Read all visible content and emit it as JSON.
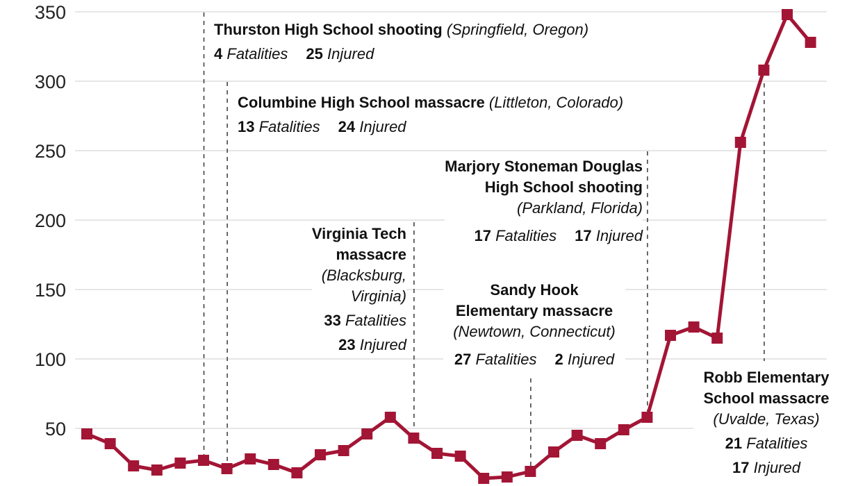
{
  "chart_data": {
    "type": "line",
    "title": "",
    "xlabel": "",
    "ylabel": "",
    "ylim": [
      0,
      350
    ],
    "yticks": [
      50,
      100,
      150,
      200,
      250,
      300,
      350
    ],
    "grid": true,
    "color": "#A31535",
    "marker": "square",
    "values": [
      46,
      39,
      23,
      20,
      25,
      27,
      21,
      28,
      24,
      18,
      31,
      34,
      46,
      58,
      43,
      32,
      30,
      14,
      15,
      19,
      33,
      45,
      39,
      49,
      58,
      117,
      123,
      115,
      256,
      308,
      348,
      328
    ],
    "annotations": [
      {
        "name": "Thurston High School shooting",
        "place": "(Springfield, Oregon)",
        "fatalities": "4",
        "injured": "25",
        "index": 5
      },
      {
        "name": "Columbine High School massacre",
        "place": "(Littleton, Colorado)",
        "fatalities": "13",
        "injured": "24",
        "index": 6
      },
      {
        "name_line1": "Virginia Tech",
        "name_line2": "massacre",
        "place_line1": "(Blacksburg,",
        "place_line2": "Virginia)",
        "fatalities": "33",
        "injured": "23",
        "index": 14
      },
      {
        "name_line1": "Sandy Hook",
        "name_line2": "Elementary massacre",
        "place": "(Newtown, Connecticut)",
        "fatalities": "27",
        "injured": "2",
        "index": 19
      },
      {
        "name_line1": "Marjory Stoneman Douglas",
        "name_line2": "High School shooting",
        "place": "(Parkland, Florida)",
        "fatalities": "17",
        "injured": "17",
        "index": 24
      },
      {
        "name_line1": "Robb Elementary",
        "name_line2": "School massacre",
        "place": "(Uvalde, Texas)",
        "fatalities": "21",
        "injured": "17",
        "index": 29
      }
    ],
    "labels": {
      "fatalities": "Fatalities",
      "injured": "Injured"
    }
  }
}
